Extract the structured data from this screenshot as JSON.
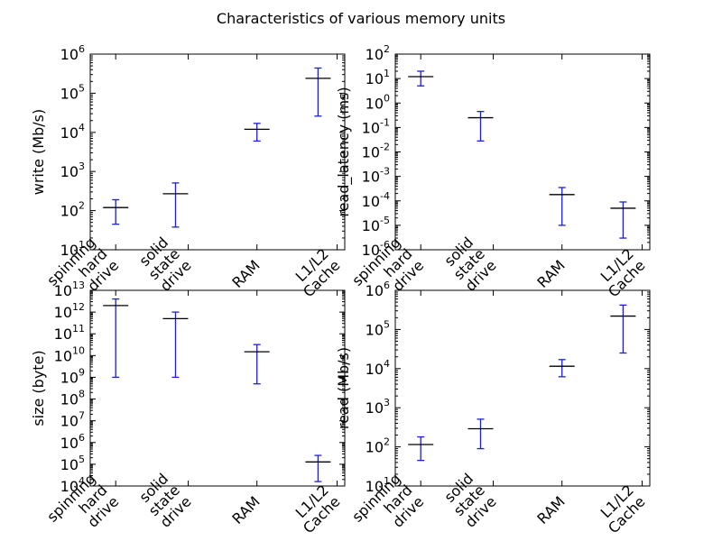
{
  "chart_data": [
    {
      "type": "errorbar",
      "ylabel": "write (Mb/s)",
      "yscale": "log",
      "ylim": [
        10,
        1000000
      ],
      "categories": [
        "spinning\nhard\ndrive",
        "solid\nstate\ndrive",
        "RAM",
        "L1/L2\nCache"
      ],
      "series": [
        {
          "center": [
            120,
            270,
            12000,
            240000
          ],
          "low": [
            45,
            38,
            6000,
            26000
          ],
          "high": [
            190,
            510,
            17000,
            440000
          ]
        }
      ]
    },
    {
      "type": "errorbar",
      "ylabel": "read_latency (ms)",
      "yscale": "log",
      "ylim": [
        1e-06,
        100
      ],
      "categories": [
        "spinning\nhard\ndrive",
        "solid\nstate\ndrive",
        "RAM",
        "L1/L2\nCache"
      ],
      "series": [
        {
          "center": [
            12,
            0.25,
            0.00018,
            5e-05
          ],
          "low": [
            5,
            0.028,
            1e-05,
            3e-06
          ],
          "high": [
            20,
            0.45,
            0.00035,
            9e-05
          ]
        }
      ]
    },
    {
      "type": "errorbar",
      "ylabel": "size (byte)",
      "yscale": "log",
      "ylim": [
        10000,
        10000000000000
      ],
      "categories": [
        "spinning\nhard\ndrive",
        "solid\nstate\ndrive",
        "RAM",
        "L1/L2\nCache"
      ],
      "series": [
        {
          "center": [
            2000000000000,
            500000000000,
            15000000000,
            128000
          ],
          "low": [
            1000000000,
            1000000000,
            500000000,
            16000
          ],
          "high": [
            4000000000000,
            1000000000000,
            32000000000,
            256000
          ]
        }
      ]
    },
    {
      "type": "errorbar",
      "ylabel": "read (Mb/s)",
      "yscale": "log",
      "ylim": [
        10,
        1000000
      ],
      "categories": [
        "spinning\nhard\ndrive",
        "solid\nstate\ndrive",
        "RAM",
        "L1/L2\nCache"
      ],
      "series": [
        {
          "center": [
            115,
            290,
            11500,
            220000
          ],
          "low": [
            45,
            90,
            6200,
            25000
          ],
          "high": [
            180,
            510,
            17000,
            420000
          ]
        }
      ]
    }
  ],
  "title": "Characteristics of various memory units",
  "colors": {
    "errorbar": "#1f1fd0",
    "center": "#000000"
  }
}
